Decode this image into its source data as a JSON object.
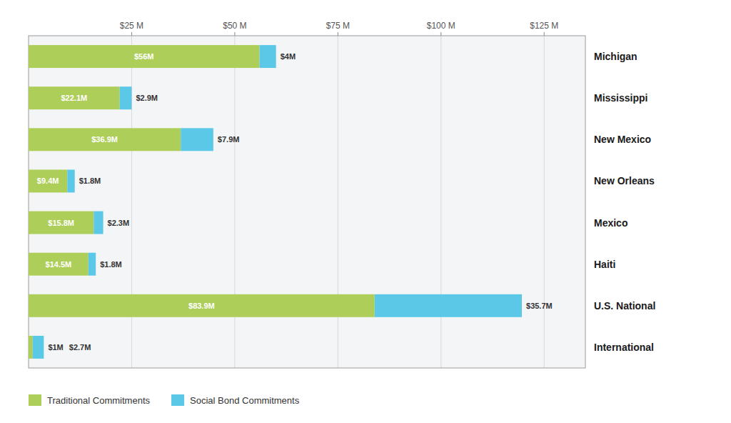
{
  "chart_data": {
    "type": "bar",
    "orientation": "horizontal",
    "stacked": true,
    "categories": [
      "Michigan",
      "Mississippi",
      "New Mexico",
      "New Orleans",
      "Mexico",
      "Haiti",
      "U.S. National",
      "International"
    ],
    "series": [
      {
        "name": "Traditional Commitments",
        "color": "#aece5a",
        "values": [
          56,
          22.1,
          36.9,
          9.4,
          15.8,
          14.5,
          83.9,
          1
        ],
        "value_labels": [
          "$56M",
          "$22.1M",
          "$36.9M",
          "$9.4M",
          "$15.8M",
          "$14.5M",
          "$83.9M",
          "$1M"
        ]
      },
      {
        "name": "Social Bond Commitments",
        "color": "#5bc8e8",
        "values": [
          4,
          2.9,
          7.9,
          1.8,
          2.3,
          1.8,
          35.7,
          2.7
        ],
        "value_labels": [
          "$4M",
          "$2.9M",
          "$7.9M",
          "$1.8M",
          "$2.3M",
          "$1.8M",
          "$35.7M",
          "$2.7M"
        ]
      }
    ],
    "xlim": [
      0,
      135
    ],
    "xticks": [
      {
        "value": 25,
        "label": "$25 M"
      },
      {
        "value": 50,
        "label": "$50 M"
      },
      {
        "value": 75,
        "label": "$75 M"
      },
      {
        "value": 100,
        "label": "$100 M"
      },
      {
        "value": 125,
        "label": "$125 M"
      }
    ],
    "grid": true,
    "data_labels": true,
    "legend": "bottom"
  }
}
